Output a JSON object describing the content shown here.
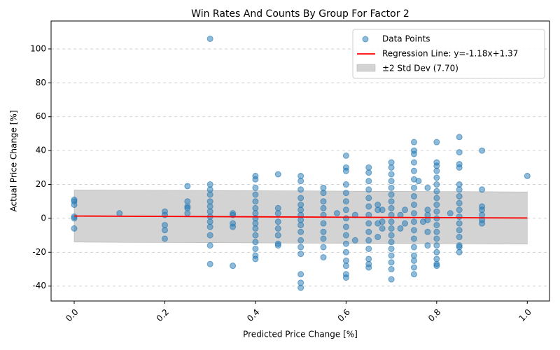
{
  "chart_data": {
    "type": "scatter",
    "title": "Win Rates And Counts By Group For Factor 2",
    "x_label": "Predicted Price Change [%]",
    "y_label": "Actual Price Change [%]",
    "xlim": [
      -0.051,
      1.049
    ],
    "ylim": [
      -48.8,
      116.5
    ],
    "xticks": [
      {
        "value": 0,
        "label": "0.0"
      },
      {
        "value": 0.2,
        "label": "0.2"
      },
      {
        "value": 0.4,
        "label": "0.4"
      },
      {
        "value": 0.6,
        "label": "0.6"
      },
      {
        "value": 0.8,
        "label": "0.8"
      },
      {
        "value": 1,
        "label": "1.0"
      }
    ],
    "yticks": [
      -40,
      -20,
      0,
      20,
      40,
      60,
      80,
      100
    ],
    "grid": "y",
    "legend": "upper right",
    "series": [
      {
        "name": "Data Points",
        "color": "#1f77b4",
        "x": [
          0,
          0,
          0,
          0,
          0,
          0,
          0.1,
          0.2,
          0.2,
          0.2,
          0.2,
          0.2,
          0.25,
          0.25,
          0.25,
          0.25,
          0.25,
          0.3,
          0.3,
          0.3,
          0.3,
          0.3,
          0.3,
          0.3,
          0.3,
          0.3,
          0.3,
          0.3,
          0.3,
          0.3,
          0.35,
          0.35,
          0.35,
          0.35,
          0.35,
          0.4,
          0.4,
          0.4,
          0.4,
          0.4,
          0.4,
          0.4,
          0.4,
          0.4,
          0.4,
          0.4,
          0.4,
          0.4,
          0.4,
          0.4,
          0.45,
          0.45,
          0.45,
          0.45,
          0.45,
          0.45,
          0.45,
          0.45,
          0.5,
          0.5,
          0.5,
          0.5,
          0.5,
          0.5,
          0.5,
          0.5,
          0.5,
          0.5,
          0.5,
          0.5,
          0.5,
          0.5,
          0.5,
          0.5,
          0.55,
          0.55,
          0.55,
          0.55,
          0.55,
          0.55,
          0.55,
          0.55,
          0.55,
          0.55,
          0.58,
          0.6,
          0.6,
          0.6,
          0.6,
          0.6,
          0.6,
          0.6,
          0.6,
          0.6,
          0.6,
          0.6,
          0.6,
          0.6,
          0.6,
          0.6,
          0.6,
          0.62,
          0.62,
          0.65,
          0.65,
          0.65,
          0.65,
          0.65,
          0.65,
          0.65,
          0.65,
          0.65,
          0.65,
          0.65,
          0.65,
          0.65,
          0.65,
          0.67,
          0.67,
          0.67,
          0.67,
          0.68,
          0.68,
          0.68,
          0.7,
          0.7,
          0.7,
          0.7,
          0.7,
          0.7,
          0.7,
          0.7,
          0.7,
          0.7,
          0.7,
          0.7,
          0.7,
          0.7,
          0.7,
          0.7,
          0.7,
          0.7,
          0.72,
          0.72,
          0.73,
          0.73,
          0.75,
          0.75,
          0.75,
          0.75,
          0.75,
          0.75,
          0.75,
          0.75,
          0.75,
          0.75,
          0.75,
          0.75,
          0.75,
          0.75,
          0.75,
          0.75,
          0.75,
          0.75,
          0.76,
          0.77,
          0.78,
          0.78,
          0.78,
          0.78,
          0.78,
          0.78,
          0.8,
          0.8,
          0.8,
          0.8,
          0.8,
          0.8,
          0.8,
          0.8,
          0.8,
          0.8,
          0.8,
          0.8,
          0.8,
          0.8,
          0.8,
          0.8,
          0.8,
          0.8,
          0.8,
          0.83,
          0.85,
          0.85,
          0.85,
          0.85,
          0.85,
          0.85,
          0.85,
          0.85,
          0.85,
          0.85,
          0.85,
          0.85,
          0.85,
          0.85,
          0.85,
          0.85,
          0.9,
          0.9,
          0.9,
          0.9,
          0.9,
          0.9,
          0.9,
          1
        ],
        "y": [
          11,
          10,
          8,
          1,
          0,
          -6,
          3,
          4,
          2,
          -4,
          -7,
          -12,
          19,
          10,
          7,
          6,
          3,
          106,
          20,
          17,
          14,
          10,
          7,
          4,
          1,
          -2,
          -5,
          -10,
          -16,
          -27,
          3,
          2,
          -3,
          -5,
          -28,
          25,
          23,
          18,
          14,
          10,
          6,
          3,
          0,
          -3,
          -6,
          -10,
          -14,
          -18,
          -22,
          -24,
          26,
          6,
          3,
          -2,
          -6,
          -10,
          -15,
          -16,
          25,
          22,
          17,
          12,
          8,
          5,
          2,
          -1,
          -4,
          -8,
          -13,
          -17,
          -21,
          -33,
          -38,
          -41,
          18,
          15,
          10,
          6,
          2,
          -3,
          -8,
          -12,
          -17,
          -23,
          3,
          37,
          30,
          28,
          20,
          15,
          10,
          5,
          0,
          -5,
          -10,
          -15,
          -20,
          -25,
          -28,
          -33,
          -35,
          2,
          -13,
          30,
          27,
          22,
          17,
          12,
          7,
          2,
          -3,
          -8,
          -13,
          -18,
          -24,
          -27,
          -29,
          8,
          5,
          -3,
          -11,
          5,
          -2,
          -6,
          33,
          30,
          26,
          22,
          18,
          14,
          10,
          6,
          2,
          -2,
          -6,
          -10,
          -14,
          -18,
          -22,
          -26,
          -30,
          -36,
          2,
          -6,
          5,
          -3,
          45,
          40,
          38,
          33,
          28,
          23,
          18,
          13,
          8,
          3,
          -2,
          -7,
          -12,
          -17,
          -22,
          -25,
          -29,
          -33,
          22,
          -2,
          18,
          5,
          2,
          -1,
          -8,
          -16,
          45,
          33,
          31,
          28,
          24,
          20,
          16,
          12,
          8,
          4,
          0,
          -4,
          -8,
          -12,
          -16,
          -20,
          -24,
          -27,
          -28,
          3,
          48,
          39,
          32,
          30,
          20,
          17,
          13,
          9,
          5,
          1,
          -3,
          -7,
          -11,
          -16,
          -17,
          -20,
          40,
          17,
          7,
          5,
          2,
          -1,
          -3,
          25
        ]
      }
    ],
    "regression": {
      "name": "Regression Line: y=-1.18x+1.37",
      "color": "#ff0000",
      "x": [
        0,
        1
      ],
      "y": [
        1.37,
        0.19
      ]
    },
    "band": {
      "name": "±2 Std Dev (7.70)",
      "color": "#d3d3d3",
      "x": [
        0,
        1
      ],
      "upper": [
        16.77,
        15.59
      ],
      "lower": [
        -14.03,
        -15.21
      ]
    }
  }
}
